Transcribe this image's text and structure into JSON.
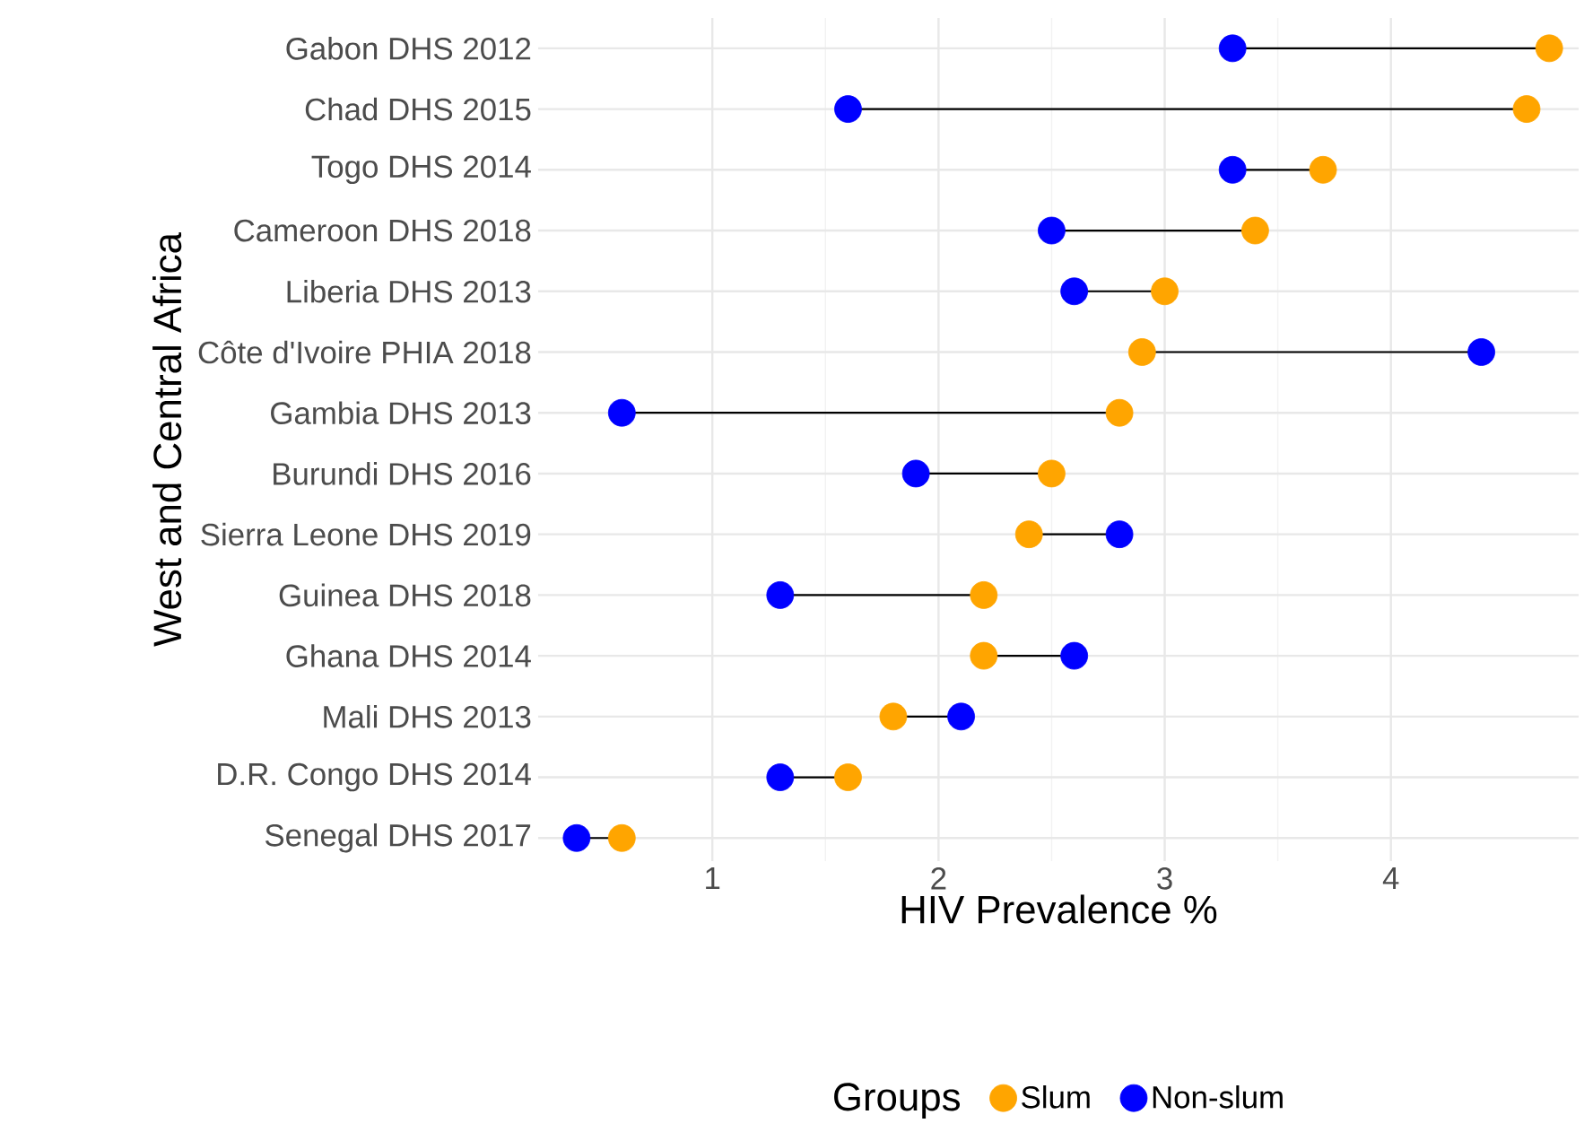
{
  "chart_data": {
    "type": "scatter",
    "orientation": "horizontal",
    "xlabel": "HIV Prevalence %",
    "ylabel": "West and Central Africa",
    "legend_title": "Groups",
    "legend": "bottom",
    "grid": true,
    "categories": [
      "Gabon DHS 2012",
      "Chad DHS 2015",
      "Togo DHS 2014",
      "Cameroon DHS 2018",
      "Liberia DHS 2013",
      "Côte d'Ivoire PHIA 2018",
      "Gambia DHS 2013",
      "Burundi DHS 2016",
      "Sierra Leone DHS 2019",
      "Guinea DHS 2018",
      "Ghana DHS 2014",
      "Mali DHS 2013",
      "D.R. Congo DHS 2014",
      "Senegal DHS 2017"
    ],
    "series": [
      {
        "name": "Slum",
        "color": "#ffa500",
        "values": [
          4.7,
          4.6,
          3.7,
          3.4,
          3.0,
          2.9,
          2.8,
          2.5,
          2.4,
          2.2,
          2.2,
          1.8,
          1.6,
          0.6
        ]
      },
      {
        "name": "Non-slum",
        "color": "#0000ff",
        "values": [
          3.3,
          1.6,
          3.3,
          2.5,
          2.6,
          4.4,
          0.6,
          1.9,
          2.8,
          1.3,
          2.6,
          2.1,
          1.3,
          0.4
        ]
      }
    ],
    "xlim": [
      0.23,
      4.83
    ],
    "xticks": [
      1,
      2,
      3,
      4
    ],
    "marker": "circle"
  }
}
